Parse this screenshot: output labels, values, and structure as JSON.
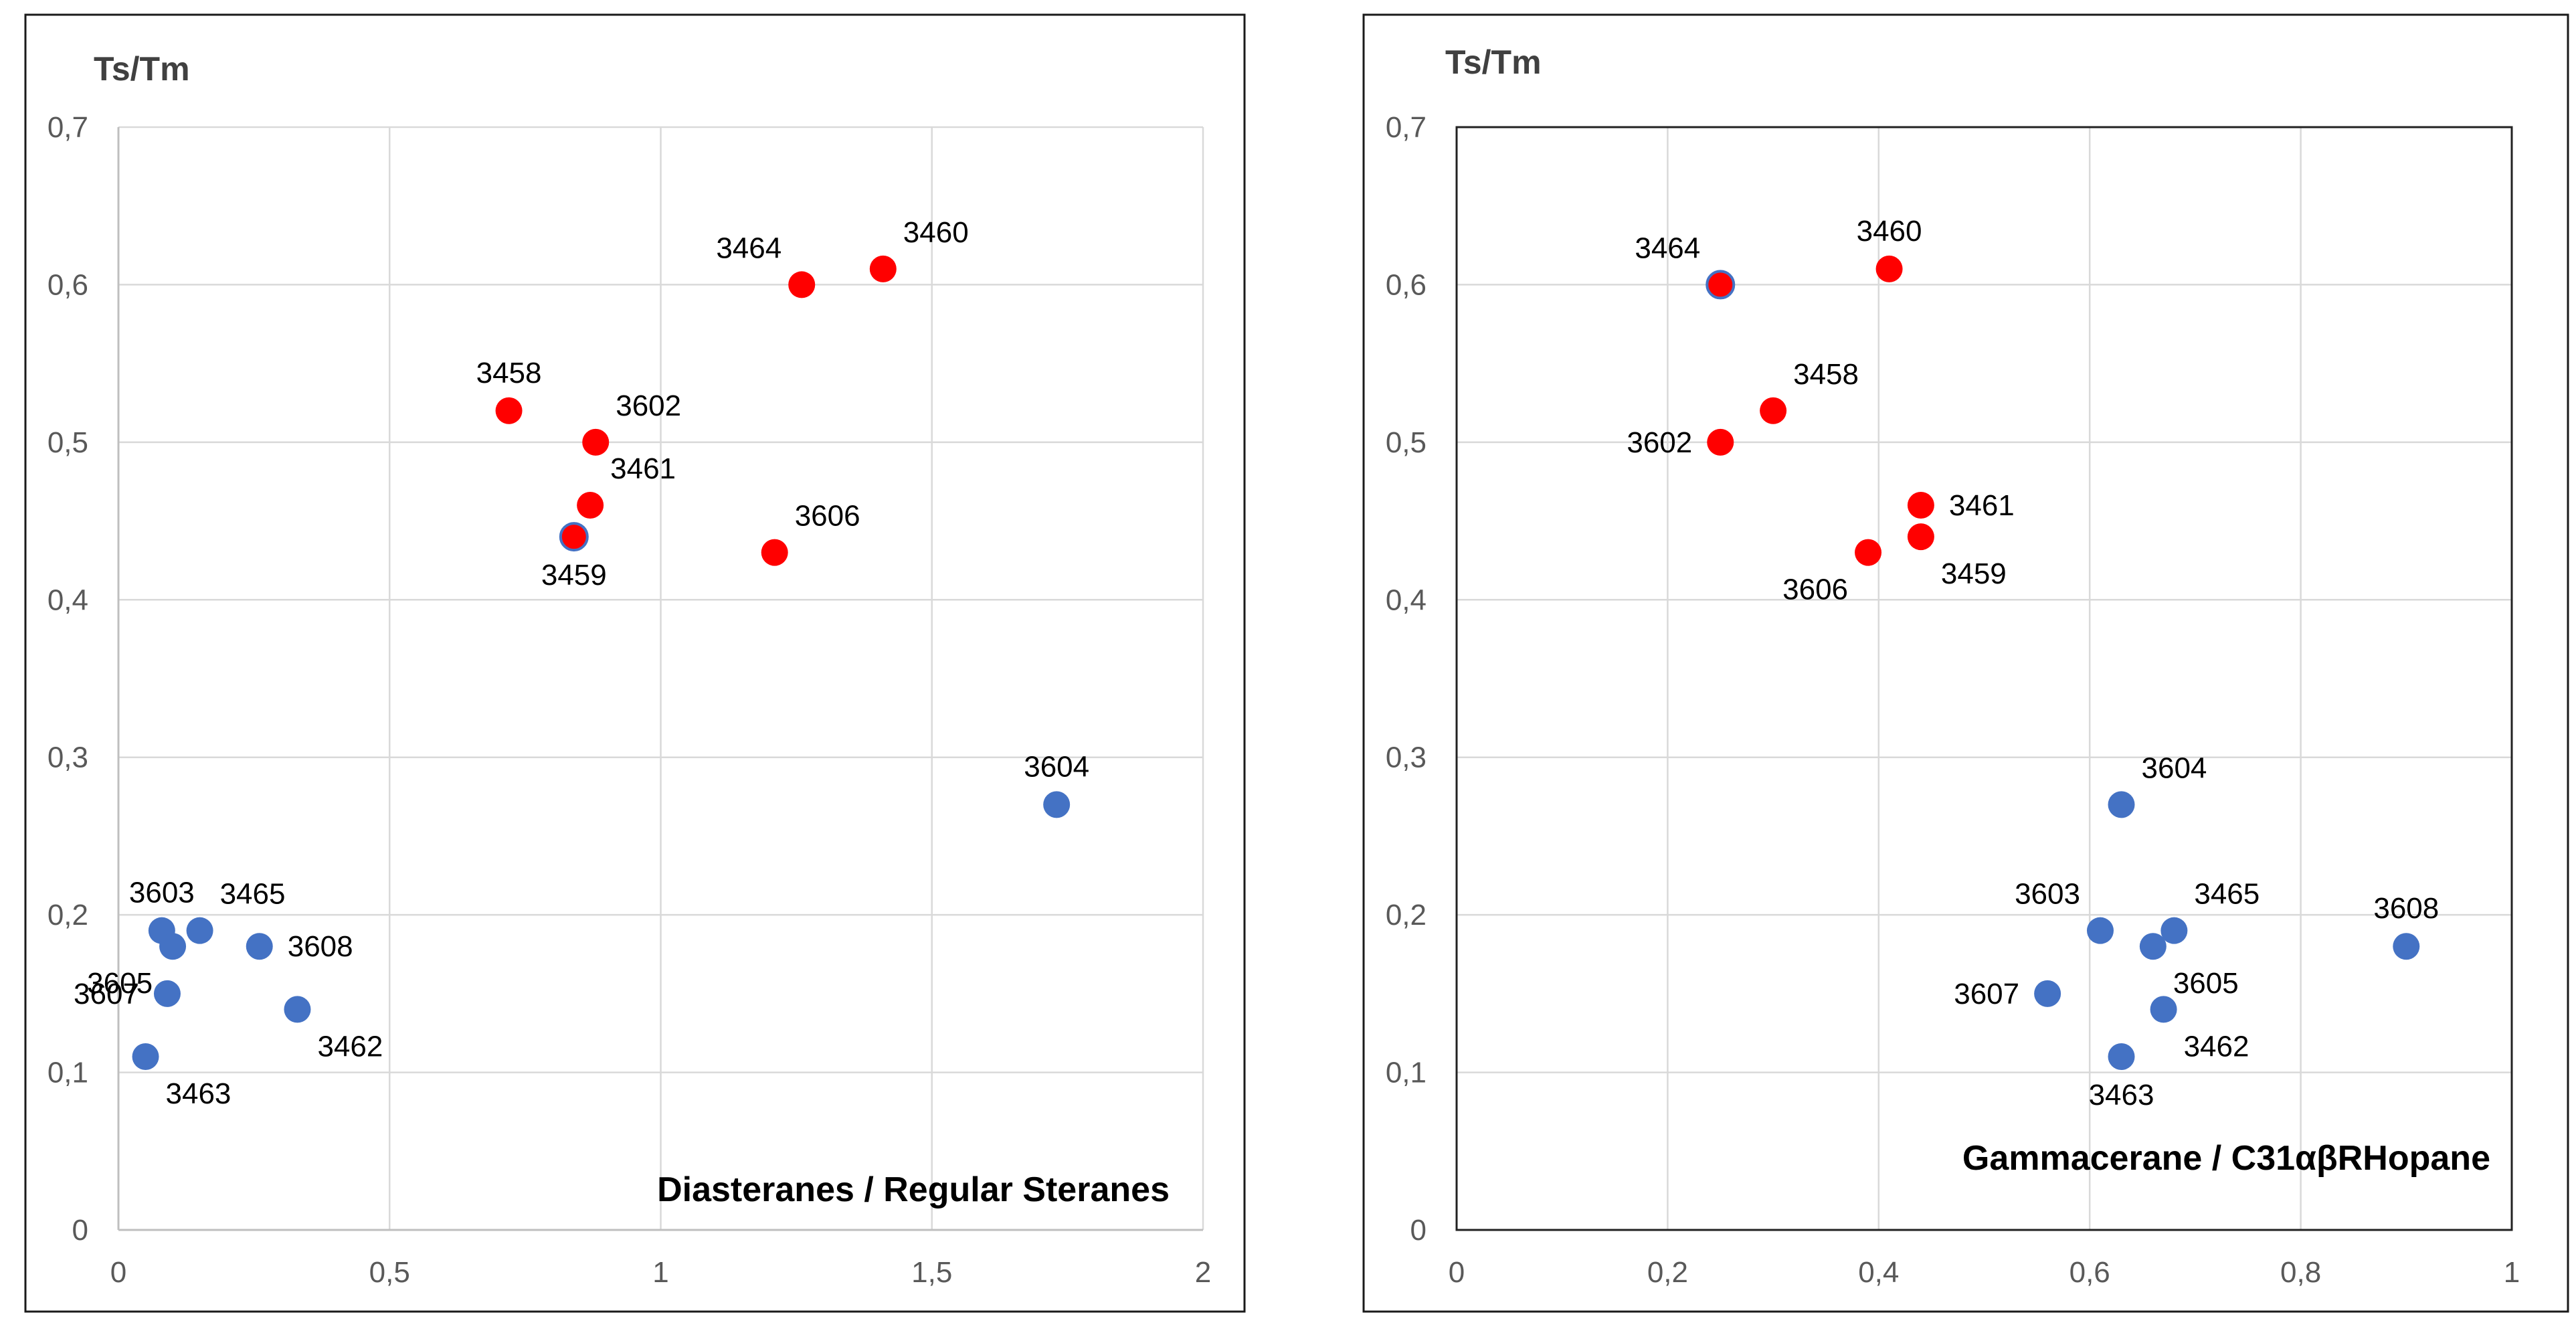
{
  "colors": {
    "red": "#ff0000",
    "blue": "#4472c4",
    "outline_blue": "#4472c4"
  },
  "chart_data": [
    {
      "type": "scatter",
      "ylabel": "Ts/Tm",
      "xlabel": "Diasteranes / Regular Steranes",
      "xlim": [
        0,
        2
      ],
      "ylim": [
        0,
        0.7
      ],
      "xticks": [
        "0",
        "0,5",
        "1",
        "1,5",
        "2"
      ],
      "xtick_values": [
        0,
        0.5,
        1,
        1.5,
        2
      ],
      "yticks": [
        "0",
        "0,1",
        "0,2",
        "0,3",
        "0,4",
        "0,5",
        "0,6",
        "0,7"
      ],
      "ytick_values": [
        0,
        0.1,
        0.2,
        0.3,
        0.4,
        0.5,
        0.6,
        0.7
      ],
      "points": [
        {
          "id": "3458",
          "x": 0.72,
          "y": 0.52,
          "color": "red",
          "label_pos": "up"
        },
        {
          "id": "3602",
          "x": 0.88,
          "y": 0.5,
          "color": "red",
          "label_pos": "upright"
        },
        {
          "id": "3461",
          "x": 0.87,
          "y": 0.46,
          "color": "red",
          "label_pos": "upright"
        },
        {
          "id": "3459",
          "x": 0.84,
          "y": 0.44,
          "color": "red-outlined",
          "label_pos": "down"
        },
        {
          "id": "3464",
          "x": 1.26,
          "y": 0.6,
          "color": "red",
          "label_pos": "upleft"
        },
        {
          "id": "3460",
          "x": 1.41,
          "y": 0.61,
          "color": "red",
          "label_pos": "upright"
        },
        {
          "id": "3606",
          "x": 1.21,
          "y": 0.43,
          "color": "red",
          "label_pos": "upright"
        },
        {
          "id": "3604",
          "x": 1.73,
          "y": 0.27,
          "color": "blue",
          "label_pos": "up"
        },
        {
          "id": "3603",
          "x": 0.08,
          "y": 0.19,
          "color": "blue",
          "label_pos": "up"
        },
        {
          "id": "3465",
          "x": 0.15,
          "y": 0.19,
          "color": "blue",
          "label_pos": "upright"
        },
        {
          "id": "3605",
          "x": 0.1,
          "y": 0.18,
          "color": "blue",
          "label_pos": "downleft"
        },
        {
          "id": "3608",
          "x": 0.26,
          "y": 0.18,
          "color": "blue",
          "label_pos": "right"
        },
        {
          "id": "3607",
          "x": 0.09,
          "y": 0.15,
          "color": "blue",
          "label_pos": "left"
        },
        {
          "id": "3462",
          "x": 0.33,
          "y": 0.14,
          "color": "blue",
          "label_pos": "downright"
        },
        {
          "id": "3463",
          "x": 0.05,
          "y": 0.11,
          "color": "blue",
          "label_pos": "downright"
        }
      ]
    },
    {
      "type": "scatter",
      "ylabel": "Ts/Tm",
      "xlabel": "Gammacerane / C31αβRHopane",
      "xlim": [
        0,
        1
      ],
      "ylim": [
        0,
        0.7
      ],
      "xticks": [
        "0",
        "0,2",
        "0,4",
        "0,6",
        "0,8",
        "1"
      ],
      "xtick_values": [
        0,
        0.2,
        0.4,
        0.6,
        0.8,
        1
      ],
      "yticks": [
        "0",
        "0,1",
        "0,2",
        "0,3",
        "0,4",
        "0,5",
        "0,6",
        "0,7"
      ],
      "ytick_values": [
        0,
        0.1,
        0.2,
        0.3,
        0.4,
        0.5,
        0.6,
        0.7
      ],
      "points": [
        {
          "id": "3464",
          "x": 0.25,
          "y": 0.6,
          "color": "red-outlined",
          "label_pos": "upleft"
        },
        {
          "id": "3460",
          "x": 0.41,
          "y": 0.61,
          "color": "red",
          "label_pos": "up"
        },
        {
          "id": "3458",
          "x": 0.3,
          "y": 0.52,
          "color": "red",
          "label_pos": "upright"
        },
        {
          "id": "3602",
          "x": 0.25,
          "y": 0.5,
          "color": "red",
          "label_pos": "left"
        },
        {
          "id": "3461",
          "x": 0.44,
          "y": 0.46,
          "color": "red",
          "label_pos": "right"
        },
        {
          "id": "3459",
          "x": 0.44,
          "y": 0.44,
          "color": "red",
          "label_pos": "downright"
        },
        {
          "id": "3606",
          "x": 0.39,
          "y": 0.43,
          "color": "red",
          "label_pos": "downleft"
        },
        {
          "id": "3604",
          "x": 0.63,
          "y": 0.27,
          "color": "blue",
          "label_pos": "upright"
        },
        {
          "id": "3603",
          "x": 0.61,
          "y": 0.19,
          "color": "blue",
          "label_pos": "upleft"
        },
        {
          "id": "3465",
          "x": 0.68,
          "y": 0.19,
          "color": "blue",
          "label_pos": "upright"
        },
        {
          "id": "3605",
          "x": 0.66,
          "y": 0.18,
          "color": "blue",
          "label_pos": "downright"
        },
        {
          "id": "3608",
          "x": 0.9,
          "y": 0.18,
          "color": "blue",
          "label_pos": "up"
        },
        {
          "id": "3607",
          "x": 0.56,
          "y": 0.15,
          "color": "blue",
          "label_pos": "left"
        },
        {
          "id": "3462",
          "x": 0.67,
          "y": 0.14,
          "color": "blue",
          "label_pos": "downright"
        },
        {
          "id": "3463",
          "x": 0.63,
          "y": 0.11,
          "color": "blue",
          "label_pos": "down"
        }
      ]
    }
  ]
}
